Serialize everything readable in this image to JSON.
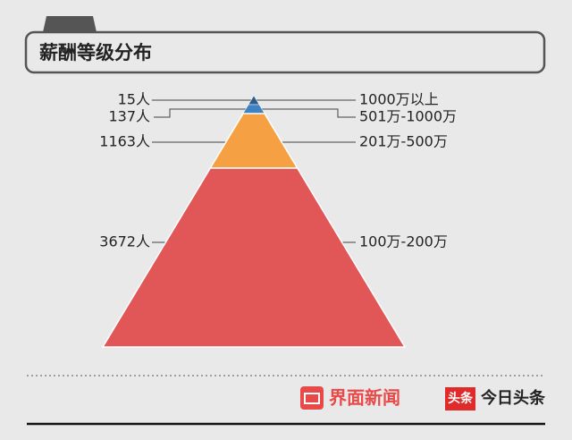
{
  "chart_data": {
    "type": "pyramid",
    "title": "薪酬等级分布",
    "categories": [
      "1000万以上",
      "501万-1000万",
      "201万-500万",
      "100万-200万"
    ],
    "values": [
      15,
      137,
      1163,
      3672
    ],
    "value_labels": [
      "15人",
      "137人",
      "1163人",
      "3672人"
    ],
    "colors": [
      "#2c5d8c",
      "#3f82c4",
      "#f5a143",
      "#e15757"
    ]
  },
  "footer": {
    "logos": [
      "界面新闻",
      "头条",
      "今日头条"
    ]
  }
}
